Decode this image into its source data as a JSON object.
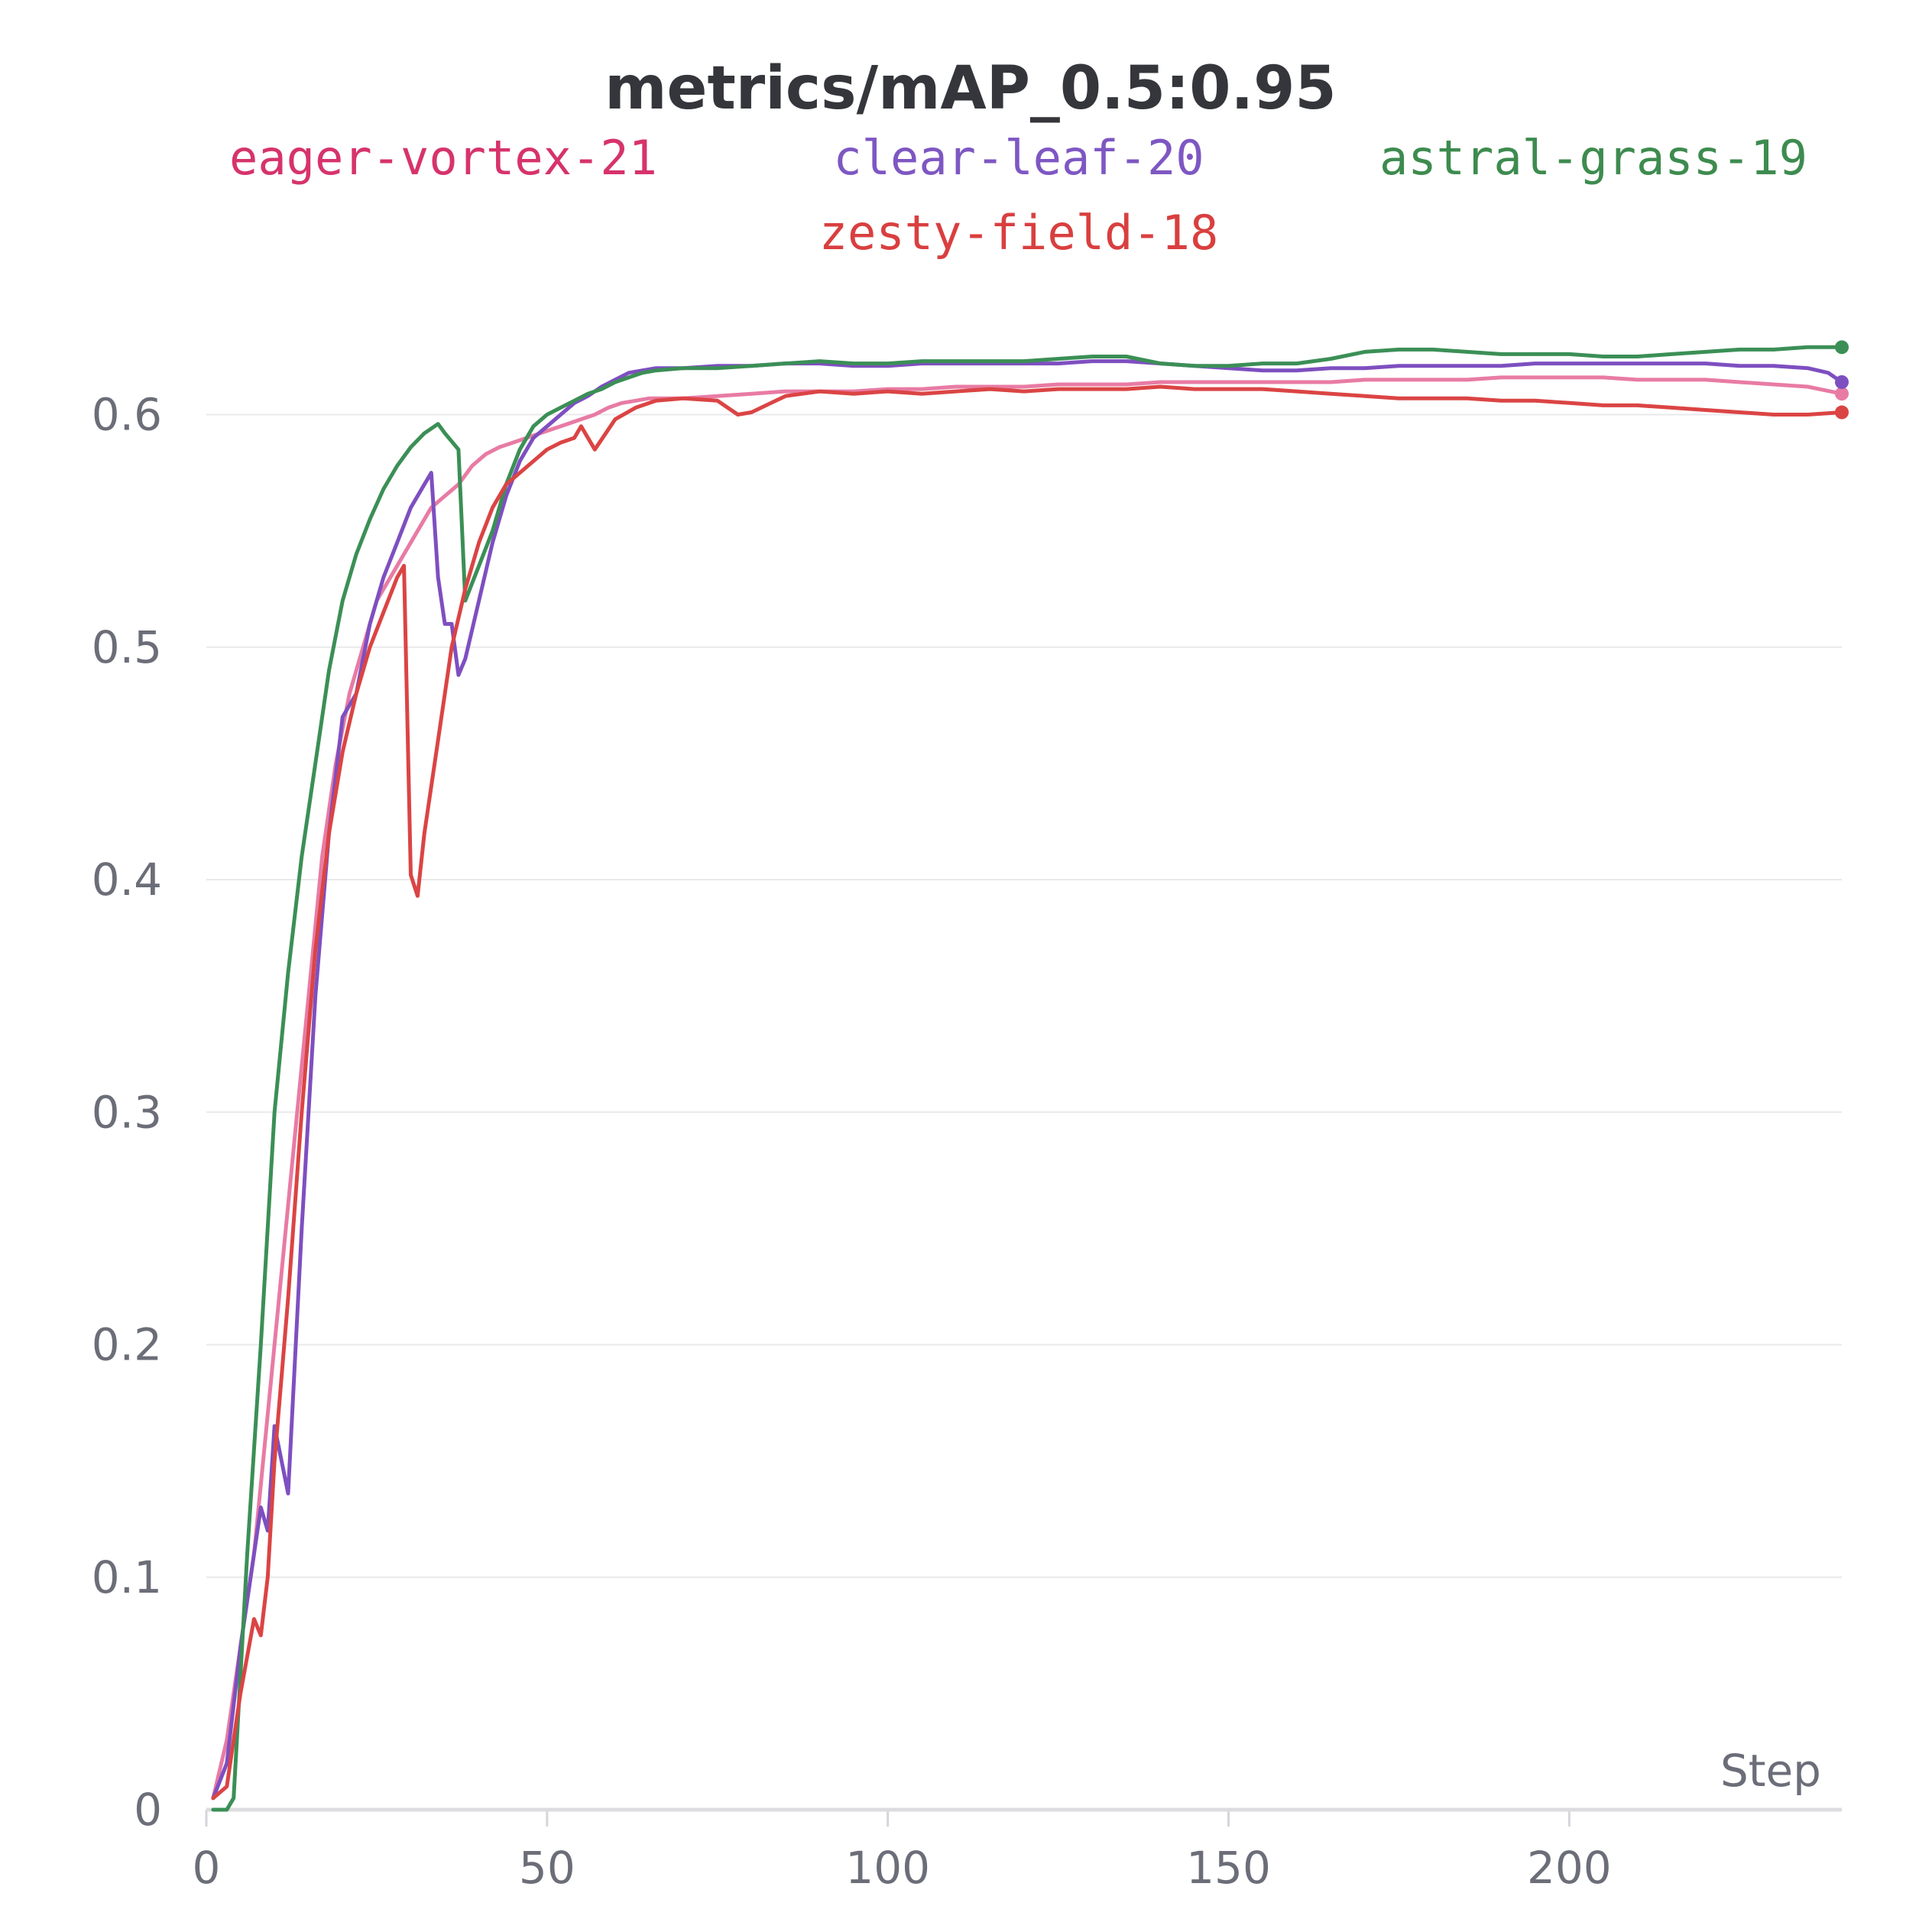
{
  "chart_data": {
    "type": "line",
    "title": "metrics/mAP_0.5:0.95",
    "xlabel": "Step",
    "ylabel": "",
    "xlim": [
      0,
      240
    ],
    "ylim": [
      0,
      0.66
    ],
    "xticks": [
      0,
      50,
      100,
      150,
      200
    ],
    "yticks": [
      0,
      0.1,
      0.2,
      0.3,
      0.4,
      0.5,
      0.6
    ],
    "grid": true,
    "legend_position": "top",
    "series": [
      {
        "name": "eager-vortex-21",
        "color": "#e87ba4",
        "legend_color": "#d6336c",
        "points": [
          [
            1,
            0.005
          ],
          [
            3,
            0.03
          ],
          [
            5,
            0.07
          ],
          [
            7,
            0.11
          ],
          [
            9,
            0.17
          ],
          [
            11,
            0.23
          ],
          [
            13,
            0.29
          ],
          [
            15,
            0.35
          ],
          [
            17,
            0.41
          ],
          [
            19,
            0.45
          ],
          [
            21,
            0.48
          ],
          [
            23,
            0.5
          ],
          [
            25,
            0.52
          ],
          [
            27,
            0.53
          ],
          [
            29,
            0.54
          ],
          [
            31,
            0.55
          ],
          [
            33,
            0.56
          ],
          [
            35,
            0.565
          ],
          [
            37,
            0.57
          ],
          [
            39,
            0.578
          ],
          [
            41,
            0.583
          ],
          [
            43,
            0.586
          ],
          [
            45,
            0.588
          ],
          [
            47,
            0.59
          ],
          [
            49,
            0.592
          ],
          [
            51,
            0.594
          ],
          [
            53,
            0.596
          ],
          [
            55,
            0.598
          ],
          [
            57,
            0.6
          ],
          [
            59,
            0.603
          ],
          [
            61,
            0.605
          ],
          [
            63,
            0.606
          ],
          [
            65,
            0.607
          ],
          [
            70,
            0.607
          ],
          [
            75,
            0.608
          ],
          [
            80,
            0.609
          ],
          [
            85,
            0.61
          ],
          [
            90,
            0.61
          ],
          [
            95,
            0.61
          ],
          [
            100,
            0.611
          ],
          [
            105,
            0.611
          ],
          [
            110,
            0.612
          ],
          [
            115,
            0.612
          ],
          [
            120,
            0.612
          ],
          [
            125,
            0.613
          ],
          [
            130,
            0.613
          ],
          [
            135,
            0.613
          ],
          [
            140,
            0.614
          ],
          [
            145,
            0.614
          ],
          [
            150,
            0.614
          ],
          [
            155,
            0.614
          ],
          [
            160,
            0.614
          ],
          [
            165,
            0.614
          ],
          [
            170,
            0.615
          ],
          [
            175,
            0.615
          ],
          [
            180,
            0.615
          ],
          [
            185,
            0.615
          ],
          [
            190,
            0.616
          ],
          [
            195,
            0.616
          ],
          [
            200,
            0.616
          ],
          [
            205,
            0.616
          ],
          [
            210,
            0.615
          ],
          [
            215,
            0.615
          ],
          [
            220,
            0.615
          ],
          [
            225,
            0.614
          ],
          [
            230,
            0.613
          ],
          [
            235,
            0.612
          ],
          [
            240,
            0.609
          ]
        ]
      },
      {
        "name": "clear-leaf-20",
        "color": "#7e4fc0",
        "legend_color": "#7e57c2",
        "points": [
          [
            1,
            0.005
          ],
          [
            3,
            0.02
          ],
          [
            5,
            0.07
          ],
          [
            7,
            0.11
          ],
          [
            8,
            0.13
          ],
          [
            9,
            0.12
          ],
          [
            10,
            0.165
          ],
          [
            12,
            0.136
          ],
          [
            14,
            0.25
          ],
          [
            16,
            0.35
          ],
          [
            18,
            0.42
          ],
          [
            20,
            0.47
          ],
          [
            22,
            0.48
          ],
          [
            24,
            0.51
          ],
          [
            26,
            0.53
          ],
          [
            28,
            0.545
          ],
          [
            30,
            0.56
          ],
          [
            32,
            0.57
          ],
          [
            33,
            0.575
          ],
          [
            34,
            0.53
          ],
          [
            35,
            0.51
          ],
          [
            36,
            0.51
          ],
          [
            37,
            0.488
          ],
          [
            38,
            0.495
          ],
          [
            40,
            0.52
          ],
          [
            42,
            0.545
          ],
          [
            44,
            0.565
          ],
          [
            46,
            0.58
          ],
          [
            48,
            0.59
          ],
          [
            50,
            0.595
          ],
          [
            52,
            0.6
          ],
          [
            54,
            0.605
          ],
          [
            56,
            0.608
          ],
          [
            58,
            0.612
          ],
          [
            60,
            0.615
          ],
          [
            62,
            0.618
          ],
          [
            64,
            0.619
          ],
          [
            66,
            0.62
          ],
          [
            70,
            0.62
          ],
          [
            75,
            0.621
          ],
          [
            80,
            0.621
          ],
          [
            85,
            0.622
          ],
          [
            90,
            0.622
          ],
          [
            95,
            0.621
          ],
          [
            100,
            0.621
          ],
          [
            105,
            0.622
          ],
          [
            110,
            0.622
          ],
          [
            115,
            0.622
          ],
          [
            120,
            0.622
          ],
          [
            125,
            0.622
          ],
          [
            130,
            0.623
          ],
          [
            135,
            0.623
          ],
          [
            140,
            0.622
          ],
          [
            145,
            0.621
          ],
          [
            150,
            0.62
          ],
          [
            155,
            0.619
          ],
          [
            160,
            0.619
          ],
          [
            165,
            0.62
          ],
          [
            170,
            0.62
          ],
          [
            175,
            0.621
          ],
          [
            180,
            0.621
          ],
          [
            185,
            0.621
          ],
          [
            190,
            0.621
          ],
          [
            195,
            0.622
          ],
          [
            200,
            0.622
          ],
          [
            205,
            0.622
          ],
          [
            210,
            0.622
          ],
          [
            215,
            0.622
          ],
          [
            220,
            0.622
          ],
          [
            225,
            0.621
          ],
          [
            230,
            0.621
          ],
          [
            235,
            0.62
          ],
          [
            238,
            0.618
          ],
          [
            240,
            0.614
          ]
        ]
      },
      {
        "name": "astral-grass-19",
        "color": "#3b8f56",
        "legend_color": "#3d8b4f",
        "points": [
          [
            1,
            0
          ],
          [
            3,
            0
          ],
          [
            4,
            0.005
          ],
          [
            6,
            0.11
          ],
          [
            8,
            0.2
          ],
          [
            10,
            0.3
          ],
          [
            12,
            0.36
          ],
          [
            14,
            0.41
          ],
          [
            16,
            0.45
          ],
          [
            18,
            0.49
          ],
          [
            20,
            0.52
          ],
          [
            22,
            0.54
          ],
          [
            24,
            0.555
          ],
          [
            26,
            0.568
          ],
          [
            28,
            0.578
          ],
          [
            30,
            0.586
          ],
          [
            32,
            0.592
          ],
          [
            34,
            0.596
          ],
          [
            35,
            0.592
          ],
          [
            37,
            0.585
          ],
          [
            38,
            0.52
          ],
          [
            40,
            0.535
          ],
          [
            42,
            0.55
          ],
          [
            44,
            0.57
          ],
          [
            46,
            0.585
          ],
          [
            48,
            0.595
          ],
          [
            50,
            0.6
          ],
          [
            52,
            0.603
          ],
          [
            54,
            0.606
          ],
          [
            56,
            0.609
          ],
          [
            58,
            0.611
          ],
          [
            60,
            0.614
          ],
          [
            62,
            0.616
          ],
          [
            64,
            0.618
          ],
          [
            66,
            0.619
          ],
          [
            70,
            0.62
          ],
          [
            75,
            0.62
          ],
          [
            80,
            0.621
          ],
          [
            85,
            0.622
          ],
          [
            90,
            0.623
          ],
          [
            95,
            0.622
          ],
          [
            100,
            0.622
          ],
          [
            105,
            0.623
          ],
          [
            110,
            0.623
          ],
          [
            115,
            0.623
          ],
          [
            120,
            0.623
          ],
          [
            125,
            0.624
          ],
          [
            130,
            0.625
          ],
          [
            135,
            0.625
          ],
          [
            140,
            0.622
          ],
          [
            145,
            0.621
          ],
          [
            150,
            0.621
          ],
          [
            155,
            0.622
          ],
          [
            160,
            0.622
          ],
          [
            165,
            0.624
          ],
          [
            170,
            0.627
          ],
          [
            175,
            0.628
          ],
          [
            180,
            0.628
          ],
          [
            185,
            0.627
          ],
          [
            190,
            0.626
          ],
          [
            195,
            0.626
          ],
          [
            200,
            0.626
          ],
          [
            205,
            0.625
          ],
          [
            210,
            0.625
          ],
          [
            215,
            0.626
          ],
          [
            220,
            0.627
          ],
          [
            225,
            0.628
          ],
          [
            230,
            0.628
          ],
          [
            235,
            0.629
          ],
          [
            240,
            0.629
          ]
        ]
      },
      {
        "name": "zesty-field-18",
        "color": "#db4444",
        "legend_color": "#d93f3f",
        "points": [
          [
            1,
            0.005
          ],
          [
            3,
            0.01
          ],
          [
            5,
            0.05
          ],
          [
            7,
            0.082
          ],
          [
            8,
            0.075
          ],
          [
            9,
            0.1
          ],
          [
            10,
            0.15
          ],
          [
            12,
            0.22
          ],
          [
            14,
            0.3
          ],
          [
            16,
            0.37
          ],
          [
            18,
            0.42
          ],
          [
            20,
            0.455
          ],
          [
            22,
            0.48
          ],
          [
            24,
            0.5
          ],
          [
            26,
            0.515
          ],
          [
            28,
            0.53
          ],
          [
            29,
            0.535
          ],
          [
            30,
            0.402
          ],
          [
            31,
            0.393
          ],
          [
            32,
            0.42
          ],
          [
            34,
            0.46
          ],
          [
            36,
            0.5
          ],
          [
            38,
            0.525
          ],
          [
            40,
            0.545
          ],
          [
            42,
            0.56
          ],
          [
            44,
            0.57
          ],
          [
            46,
            0.575
          ],
          [
            48,
            0.58
          ],
          [
            50,
            0.585
          ],
          [
            52,
            0.588
          ],
          [
            54,
            0.59
          ],
          [
            55,
            0.595
          ],
          [
            57,
            0.585
          ],
          [
            60,
            0.598
          ],
          [
            63,
            0.603
          ],
          [
            66,
            0.606
          ],
          [
            70,
            0.607
          ],
          [
            75,
            0.606
          ],
          [
            78,
            0.6
          ],
          [
            80,
            0.601
          ],
          [
            85,
            0.608
          ],
          [
            90,
            0.61
          ],
          [
            95,
            0.609
          ],
          [
            100,
            0.61
          ],
          [
            105,
            0.609
          ],
          [
            110,
            0.61
          ],
          [
            115,
            0.611
          ],
          [
            120,
            0.61
          ],
          [
            125,
            0.611
          ],
          [
            130,
            0.611
          ],
          [
            135,
            0.611
          ],
          [
            140,
            0.612
          ],
          [
            145,
            0.611
          ],
          [
            150,
            0.611
          ],
          [
            155,
            0.611
          ],
          [
            160,
            0.61
          ],
          [
            165,
            0.609
          ],
          [
            170,
            0.608
          ],
          [
            175,
            0.607
          ],
          [
            180,
            0.607
          ],
          [
            185,
            0.607
          ],
          [
            190,
            0.606
          ],
          [
            195,
            0.606
          ],
          [
            200,
            0.605
          ],
          [
            205,
            0.604
          ],
          [
            210,
            0.604
          ],
          [
            215,
            0.603
          ],
          [
            220,
            0.602
          ],
          [
            225,
            0.601
          ],
          [
            230,
            0.6
          ],
          [
            235,
            0.6
          ],
          [
            240,
            0.601
          ]
        ]
      }
    ]
  }
}
